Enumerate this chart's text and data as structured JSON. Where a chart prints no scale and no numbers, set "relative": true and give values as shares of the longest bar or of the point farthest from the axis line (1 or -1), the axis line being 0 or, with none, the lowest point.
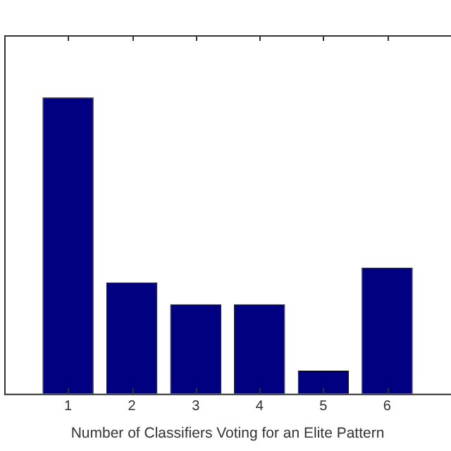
{
  "chart_data": {
    "type": "bar",
    "xlabel": "Number of Classifiers Voting for an Elite Pattern",
    "categories": [
      "1",
      "2",
      "3",
      "4",
      "5",
      "6"
    ],
    "values": [
      1,
      0.376,
      0.302,
      0.302,
      0.078,
      0.426
    ],
    "color": "#000080",
    "relative": true,
    "grid": false,
    "legend": false
  }
}
